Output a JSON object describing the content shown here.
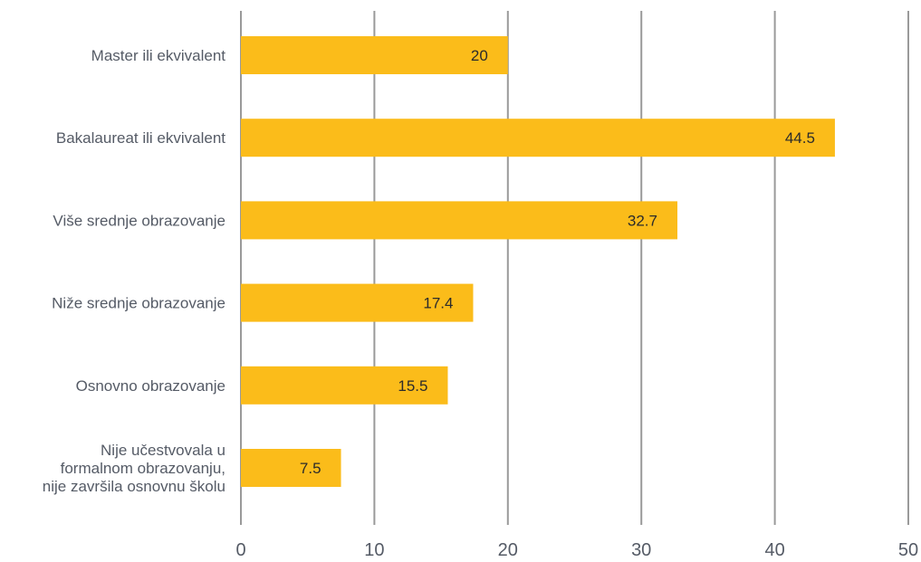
{
  "chart_data": {
    "type": "bar",
    "orientation": "horizontal",
    "categories": [
      [
        "Master ili ekvivalent"
      ],
      [
        "Bakalaureat ili ekvivalent"
      ],
      [
        "Više srednje obrazovanje"
      ],
      [
        "Niže srednje obrazovanje"
      ],
      [
        "Osnovno obrazovanje"
      ],
      [
        "Nije učestvovala u",
        "formalnom obrazovanju,",
        "nije završila osnovnu školu"
      ]
    ],
    "values": [
      20,
      44.5,
      32.7,
      17.4,
      15.5,
      7.5
    ],
    "value_labels": [
      "20",
      "44.5",
      "32.7",
      "17.4",
      "15.5",
      "7.5"
    ],
    "xlim": [
      0,
      50
    ],
    "xticks": [
      0,
      10,
      20,
      30,
      40,
      50
    ],
    "xtick_labels": [
      "0",
      "10",
      "20",
      "30",
      "40",
      "50"
    ],
    "grid": "vertical",
    "title": "",
    "xlabel": "",
    "ylabel": "",
    "colors": {
      "bar": "#fbbc1a",
      "grid": "#9a9a9a",
      "text": "#555b66",
      "value_text": "#2b2b2b"
    }
  }
}
